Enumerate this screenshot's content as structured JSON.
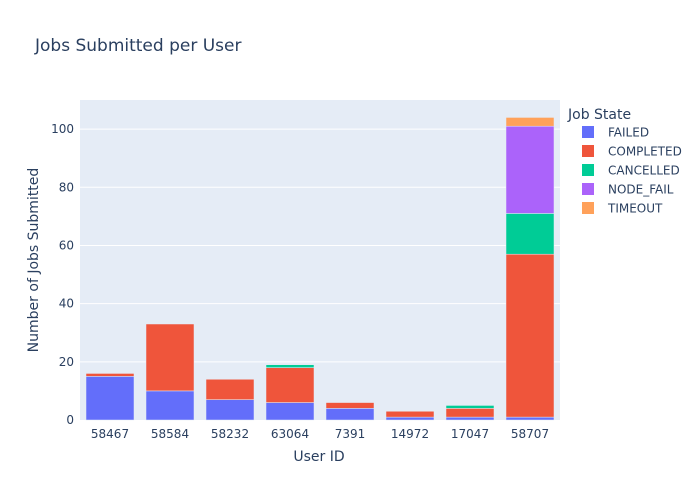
{
  "chart_data": {
    "type": "bar",
    "stacked": true,
    "title": "Jobs Submitted per User",
    "xlabel": "User ID",
    "ylabel": "Number of Jobs Submitted",
    "categories": [
      "58467",
      "58584",
      "58232",
      "63064",
      "7391",
      "14972",
      "17047",
      "58707"
    ],
    "ylim": [
      0,
      110
    ],
    "yticks": [
      0,
      20,
      40,
      60,
      80,
      100
    ],
    "grid": true,
    "legend": {
      "title": "Job State",
      "position": "right"
    },
    "series": [
      {
        "name": "FAILED",
        "color": "#636efa",
        "values": [
          15,
          10,
          7,
          6,
          4,
          1,
          1,
          1
        ]
      },
      {
        "name": "COMPLETED",
        "color": "#ef553b",
        "values": [
          1,
          23,
          7,
          12,
          2,
          2,
          3,
          56
        ]
      },
      {
        "name": "CANCELLED",
        "color": "#00cc96",
        "values": [
          0,
          0,
          0,
          1,
          0,
          0,
          1,
          14
        ]
      },
      {
        "name": "NODE_FAIL",
        "color": "#ab63fa",
        "values": [
          0,
          0,
          0,
          0,
          0,
          0,
          0,
          30
        ]
      },
      {
        "name": "TIMEOUT",
        "color": "#ffa15a",
        "values": [
          0,
          0,
          0,
          0,
          0,
          0,
          0,
          3
        ]
      }
    ]
  }
}
